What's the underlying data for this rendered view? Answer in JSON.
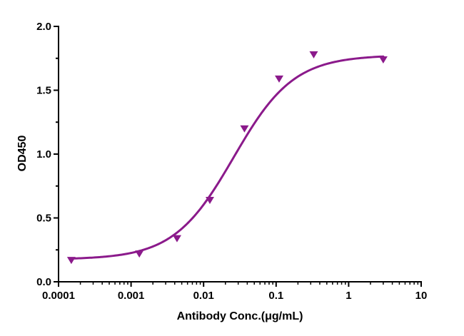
{
  "chart_data": {
    "type": "scatter",
    "title": "",
    "xlabel": "Antibody Conc.(μg/mL)",
    "ylabel": "OD450",
    "x_scale": "log",
    "xlim": [
      0.0001,
      10
    ],
    "ylim": [
      0.0,
      2.0
    ],
    "x_ticks": [
      0.0001,
      0.001,
      0.01,
      0.1,
      1,
      10
    ],
    "x_tick_labels": [
      "0.0001",
      "0.001",
      "0.01",
      "0.1",
      "1",
      "10"
    ],
    "y_ticks": [
      0.0,
      0.5,
      1.0,
      1.5,
      2.0
    ],
    "y_tick_labels": [
      "0.0",
      "0.5",
      "1.0",
      "1.5",
      "2.0"
    ],
    "grid": false,
    "legend": "none",
    "series": [
      {
        "marker": "triangle-down",
        "color": "#8B1A8B",
        "x": [
          0.00015,
          0.0013,
          0.0043,
          0.0122,
          0.0366,
          0.11,
          0.33,
          3.0
        ],
        "y": [
          0.17,
          0.22,
          0.34,
          0.64,
          1.2,
          1.59,
          1.78,
          1.74
        ]
      }
    ],
    "fit": {
      "type": "4PL",
      "color": "#8B1A8B",
      "bottom": 0.175,
      "top": 1.775,
      "ec50": 0.026,
      "hill": 1.05
    }
  }
}
